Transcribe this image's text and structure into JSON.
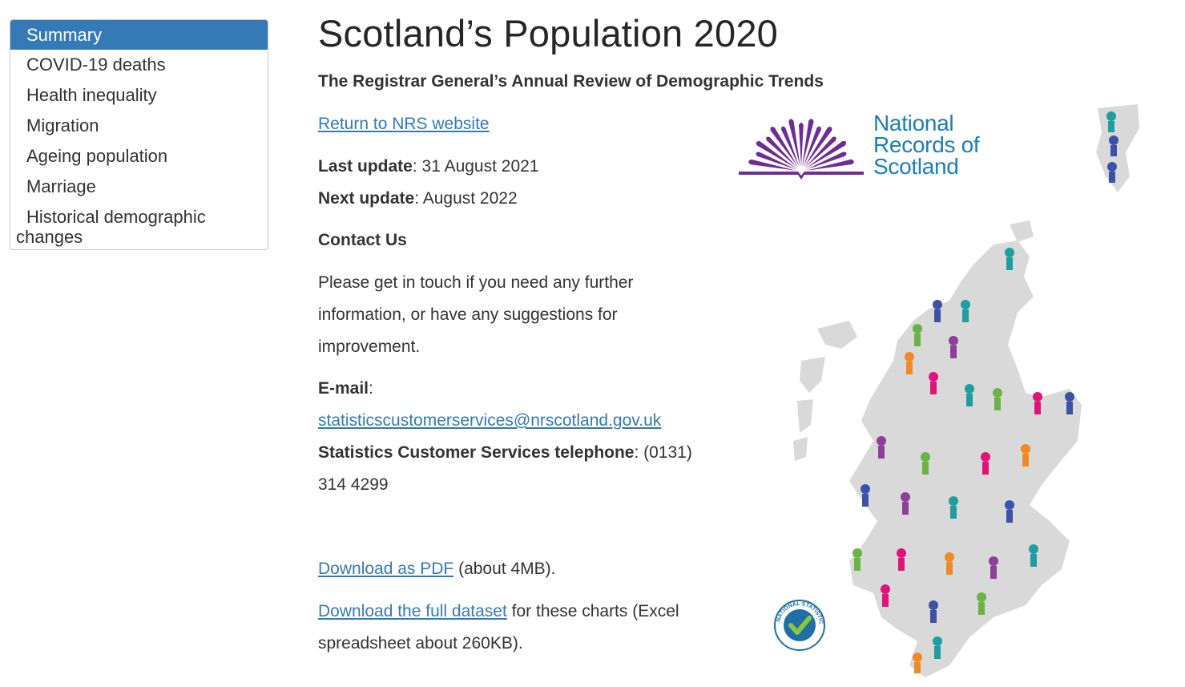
{
  "sidebar": {
    "items": [
      {
        "label": "Summary",
        "active": true
      },
      {
        "label": "COVID-19 deaths"
      },
      {
        "label": "Health inequality"
      },
      {
        "label": "Migration"
      },
      {
        "label": "Ageing population"
      },
      {
        "label": "Marriage"
      },
      {
        "label": "Historical demographic changes"
      }
    ]
  },
  "main": {
    "title": "Scotland’s Population 2020",
    "subtitle": "The Registrar General’s Annual Review of Demographic Trends",
    "return_link": "Return to NRS website",
    "last_update_label": "Last update",
    "last_update_value": ": 31 August 2021",
    "next_update_label": "Next update",
    "next_update_value": ": August 2022",
    "contact_heading": "Contact Us",
    "contact_text_1": "Please get in touch if you need any further",
    "contact_text_2": "information, or have any suggestions for",
    "contact_text_3": "improvement.",
    "email_label": "E-mail",
    "email_colon": ":",
    "email_address": "statisticscustomerservices@nrscotland.gov.uk",
    "phone_label": "Statistics Customer Services telephone",
    "phone_value_1": ": (0131)",
    "phone_value_2": "314 4299",
    "pdf_link": "Download as PDF",
    "pdf_note": " (about 4MB).",
    "dataset_link": "Download the full dataset",
    "dataset_note_1": " for these charts (Excel",
    "dataset_note_2": "spreadsheet about 260KB)."
  },
  "logo": {
    "line1": "National",
    "line2": "Records of",
    "line3": "Scotland",
    "color_text": "#1b7fb8",
    "color_mark": "#6f2c91"
  },
  "badge": {
    "text": "NATIONAL STATISTICS",
    "color": "#1d6fa5",
    "tick_color": "#8cc63f"
  },
  "colors": {
    "link": "#337ab7",
    "active_nav": "#337ab7"
  }
}
